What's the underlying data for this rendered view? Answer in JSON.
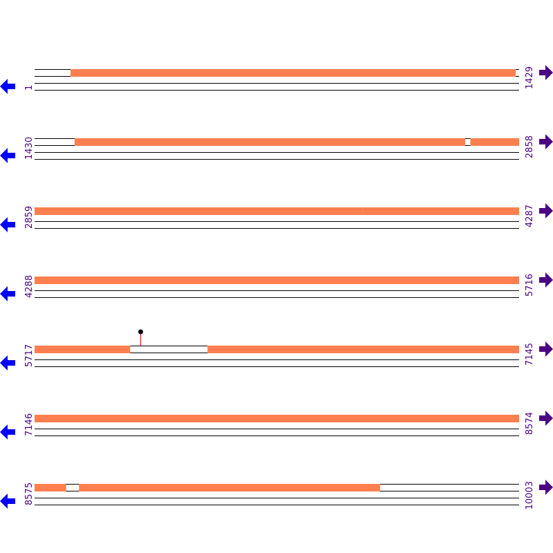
{
  "colors": {
    "feature": "#ff7f50",
    "track_line": "#000000",
    "label": "#4b0082",
    "left_arrow": "#0000ff",
    "right_arrow": "#4b0082",
    "marker_stem": "#ff0000",
    "marker_head": "#000000"
  },
  "icons": {
    "left": "arrow-left-icon",
    "right": "arrow-right-icon"
  },
  "rows": [
    {
      "start": 1,
      "end": 1429,
      "start_label": "1",
      "end_label": "1429",
      "features": [
        [
          107,
          1419
        ]
      ]
    },
    {
      "start": 1430,
      "end": 2858,
      "start_label": "1430",
      "end_label": "2858",
      "features": [
        [
          1548,
          2699
        ],
        [
          2715,
          2858
        ]
      ]
    },
    {
      "start": 2859,
      "end": 4287,
      "start_label": "2859",
      "end_label": "4287",
      "features": [
        [
          2859,
          3825
        ],
        [
          3826,
          4287
        ]
      ]
    },
    {
      "start": 4288,
      "end": 5716,
      "start_label": "4288",
      "end_label": "5716",
      "features": [
        [
          4288,
          5716
        ]
      ]
    },
    {
      "start": 5717,
      "end": 7145,
      "start_label": "5717",
      "end_label": "7145",
      "features": [
        [
          5717,
          5998
        ],
        [
          6227,
          7145
        ]
      ],
      "markers": [
        6029
      ]
    },
    {
      "start": 7146,
      "end": 8574,
      "start_label": "7146",
      "end_label": "8574",
      "features": [
        [
          7146,
          8574
        ]
      ]
    },
    {
      "start": 8575,
      "end": 10003,
      "start_label": "8575",
      "end_label": "10003",
      "features": [
        [
          8575,
          8667
        ],
        [
          8706,
          9593
        ]
      ]
    }
  ]
}
